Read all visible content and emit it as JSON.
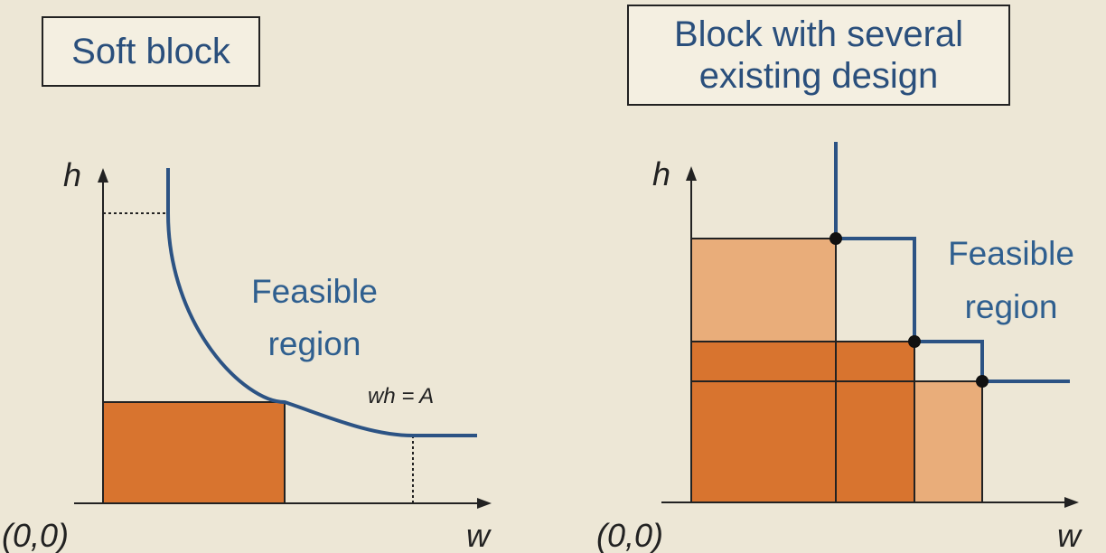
{
  "left_panel": {
    "title": "Soft block",
    "axis_h": "h",
    "axis_w": "w",
    "origin": "(0,0)",
    "region_line1": "Feasible",
    "region_line2": "region",
    "curve_label": "wh = A"
  },
  "right_panel": {
    "title_line1": "Block with several",
    "title_line2": "existing design",
    "axis_h": "h",
    "axis_w": "w",
    "origin": "(0,0)",
    "region_line1": "Feasible",
    "region_line2": "region"
  },
  "colors": {
    "background": "#ede7d6",
    "curve": "#2c5384",
    "label_text": "#2f5f8f",
    "block_dark": "#d8742f",
    "block_light": "#e9ad7a"
  }
}
